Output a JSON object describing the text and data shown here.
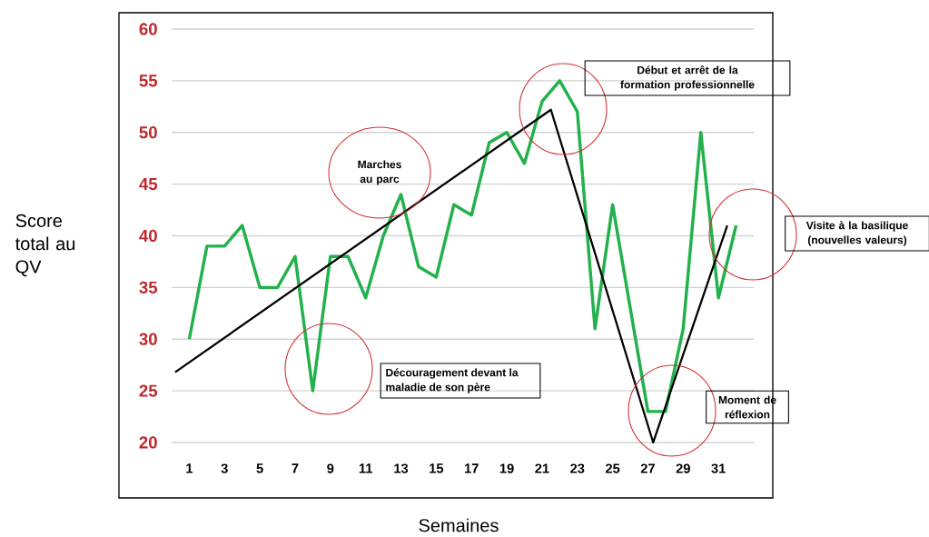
{
  "chart_data": {
    "type": "line",
    "xlabel": "Semaines",
    "ylabel": "Score total au QV",
    "xlim": [
      0,
      33
    ],
    "xticks": [
      1,
      3,
      5,
      7,
      9,
      11,
      13,
      15,
      17,
      19,
      21,
      23,
      25,
      27,
      29,
      31
    ],
    "ylim": [
      20,
      60
    ],
    "yticks": [
      20,
      25,
      30,
      35,
      40,
      45,
      50,
      55,
      60
    ],
    "grid": "y",
    "marker": "none",
    "line_style": "solid",
    "x": [
      1,
      2,
      3,
      4,
      5,
      6,
      7,
      8,
      9,
      10,
      11,
      12,
      13,
      14,
      15,
      16,
      17,
      18,
      19,
      20,
      21,
      22,
      23,
      24,
      25,
      26,
      27,
      28,
      29,
      30,
      31,
      32
    ],
    "series": [
      {
        "color": "#22b14c",
        "values": [
          30,
          39,
          39,
          41,
          35,
          35,
          38,
          25,
          38,
          38,
          34,
          40,
          44,
          37,
          36,
          43,
          42,
          49,
          50,
          47,
          53,
          55,
          52,
          31,
          43,
          33,
          23,
          23,
          31,
          50,
          34,
          41
        ]
      },
      {
        "type": "line",
        "color": "#000000",
        "x": [
          0.2,
          21.5,
          27.3,
          31.5
        ],
        "values": [
          26.8,
          52.2,
          20,
          41
        ]
      }
    ],
    "annotations": [
      "Marches au parc",
      "Découragement devant la maladie de son père",
      "Début et arrêt de la formation professionnelle",
      "Visite à la basilique (nouvelles valeurs)",
      "Moment de réflexion"
    ]
  }
}
